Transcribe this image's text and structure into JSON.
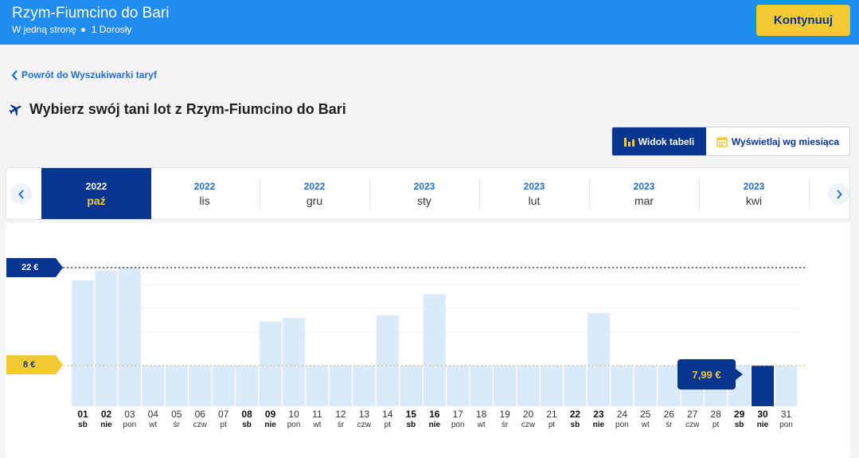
{
  "header": {
    "title": "Rzym-Fiumcino do Bari",
    "trip_type": "W jedną stronę",
    "passengers": "1 Dorosły",
    "continue_label": "Kontynuuj"
  },
  "back_link": "Powrót do Wyszukiwarki taryf",
  "page_title": "Wybierz swój tani lot z Rzym-Fiumcino do Bari",
  "view_toggle": {
    "table_label": "Widok tabeli",
    "month_label": "Wyświetlaj wg miesiąca"
  },
  "months": [
    {
      "year": "2022",
      "name": "paź",
      "active": true
    },
    {
      "year": "2022",
      "name": "lis",
      "active": false
    },
    {
      "year": "2022",
      "name": "gru",
      "active": false
    },
    {
      "year": "2023",
      "name": "sty",
      "active": false
    },
    {
      "year": "2023",
      "name": "lut",
      "active": false
    },
    {
      "year": "2023",
      "name": "mar",
      "active": false
    },
    {
      "year": "2023",
      "name": "kwi",
      "active": false
    }
  ],
  "price_markers": {
    "max": "22 €",
    "min": "8 €"
  },
  "selected_price": "7,99 €",
  "colors": {
    "header": "#1f8cf0",
    "navy": "#073590",
    "yellow": "#f1c933",
    "bar": "#daeafb",
    "bar_selected": "#073590"
  },
  "chart_data": {
    "type": "bar",
    "categories": [
      "01",
      "02",
      "03",
      "04",
      "05",
      "06",
      "07",
      "08",
      "09",
      "10",
      "11",
      "12",
      "13",
      "14",
      "15",
      "16",
      "17",
      "18",
      "19",
      "20",
      "21",
      "22",
      "23",
      "24",
      "25",
      "26",
      "27",
      "28",
      "29",
      "30",
      "31"
    ],
    "weekdays": [
      "sb",
      "nie",
      "pon",
      "wt",
      "śr",
      "czw",
      "pt",
      "sb",
      "nie",
      "pon",
      "wt",
      "śr",
      "czw",
      "pt",
      "sb",
      "nie",
      "pon",
      "wt",
      "śr",
      "czw",
      "pt",
      "sb",
      "nie",
      "pon",
      "wt",
      "śr",
      "czw",
      "pt",
      "sb",
      "nie",
      "pon"
    ],
    "bold_days": [
      "01",
      "02",
      "08",
      "09",
      "15",
      "16",
      "22",
      "23",
      "29",
      "30"
    ],
    "values": [
      20.2,
      21.6,
      22,
      7.99,
      7.99,
      7.99,
      7.99,
      7.99,
      14.3,
      14.8,
      7.99,
      7.99,
      7.99,
      15.2,
      7.99,
      18.2,
      7.99,
      7.99,
      7.99,
      7.99,
      7.99,
      7.99,
      15.5,
      7.99,
      7.99,
      7.99,
      7.99,
      7.99,
      7.99,
      7.99,
      7.99
    ],
    "selected_index": 29,
    "currency": "€",
    "ylim": [
      0,
      22
    ]
  }
}
